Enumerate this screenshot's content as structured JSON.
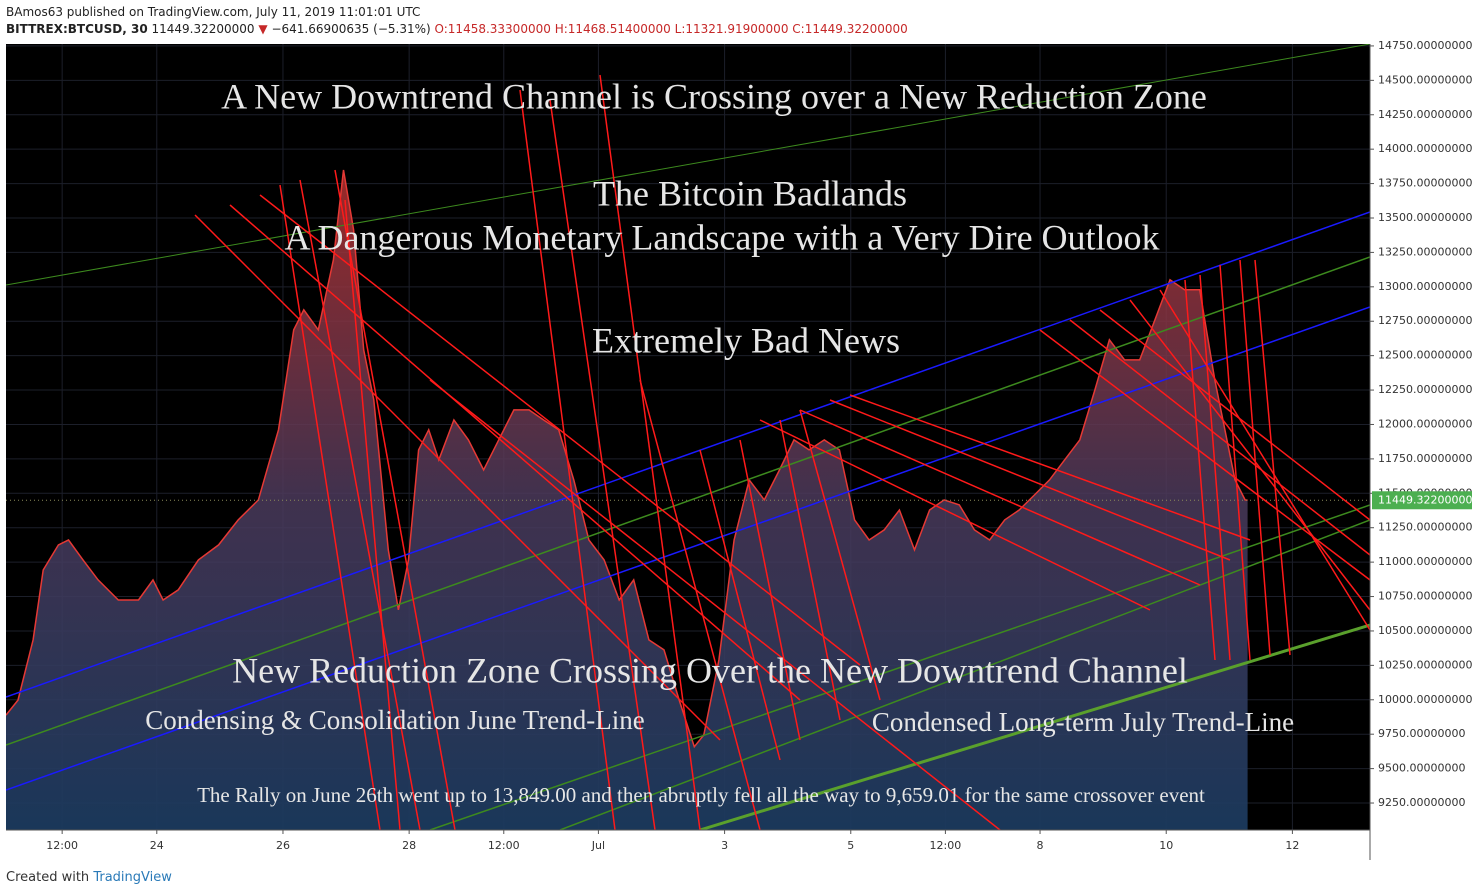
{
  "header": {
    "publisher": "BAmos63 published on TradingView.com, July 11, 2019 11:01:01 UTC",
    "symbol": "BITTREX:BTCUSD, 30",
    "last": "11449.32200000",
    "arrow": "▼",
    "change": "−641.66900635 (−5.31%)",
    "open": "O:11458.33300000",
    "high": "H:11468.51400000",
    "low": "L:11321.91900000",
    "close": "C:11449.32200000"
  },
  "footer": {
    "created": "Created with",
    "brand": "TradingView"
  },
  "chart_data": {
    "type": "area",
    "color": "#e53935",
    "annotations": [
      "A New Downtrend Channel is Crossing over a New Reduction Zone",
      "The Bitcoin Badlands",
      "A Dangerous Monetary Landscape with a Very Dire Outlook",
      "Extremely Bad News",
      "New Reduction Zone Crossing Over the New Downtrend Channel",
      "Condensing & Consolidation June Trend-Line",
      "Condensed Long-term July Trend-Line",
      "The Rally on June 26th went up to 13,849.00 and then abruptly fell all the way to 9,659.01 for the same crossover event"
    ],
    "x": [
      -0.39,
      -0.2,
      0.04,
      0.2,
      0.44,
      0.6,
      0.83,
      1.07,
      1.39,
      1.71,
      1.94,
      2.1,
      2.34,
      2.66,
      2.98,
      3.29,
      3.61,
      3.93,
      4.17,
      4.33,
      4.56,
      4.8,
      4.96,
      5.12,
      5.28,
      5.44,
      5.67,
      5.83,
      5.99,
      6.15,
      6.31,
      6.47,
      6.71,
      6.94,
      7.18,
      7.42,
      7.66,
      7.9,
      8.13,
      8.37,
      8.61,
      8.85,
      9.09,
      9.33,
      9.56,
      9.8,
      10.04,
      10.28,
      10.52,
      10.67,
      10.91,
      11.15,
      11.39,
      11.63,
      11.87,
      12.1,
      12.34,
      12.58,
      12.82,
      13.06,
      13.29,
      13.53,
      13.77,
      14.01,
      14.25,
      14.48,
      14.72,
      14.96,
      15.2,
      15.44,
      15.67,
      15.91,
      16.15,
      16.39,
      16.63,
      16.87,
      17.1,
      17.34,
      17.58,
      17.82,
      18.06,
      18.29,
      18.53,
      18.77,
      18.93,
      19.09,
      19.25,
      19.29
    ],
    "values": [
      9889,
      9998,
      10435,
      10943,
      11125,
      11161,
      11016,
      10871,
      10725,
      10725,
      10871,
      10725,
      10798,
      11016,
      11125,
      11307,
      11452,
      11961,
      12687,
      12833,
      12687,
      13196,
      13849,
      13414,
      12542,
      12179,
      11089,
      10653,
      11016,
      11815,
      11961,
      11743,
      12033,
      11888,
      11670,
      11888,
      12106,
      12106,
      12033,
      11961,
      11597,
      11161,
      11016,
      10725,
      10871,
      10435,
      10362,
      9998,
      9659,
      9744,
      10289,
      11161,
      11597,
      11452,
      11670,
      11888,
      11815,
      11888,
      11815,
      11307,
      11161,
      11234,
      11379,
      11089,
      11379,
      11452,
      11416,
      11234,
      11161,
      11307,
      11379,
      11488,
      11597,
      11743,
      11888,
      12251,
      12615,
      12469,
      12469,
      12760,
      13051,
      12978,
      12978,
      12324,
      11961,
      11597,
      11452,
      11449.322
    ],
    "last_price": {
      "value": 11449.322,
      "label": "11449.32200000"
    },
    "xlim": [
      -0.39,
      21.23
    ],
    "ylim": [
      9054,
      14764
    ],
    "xticks": [
      {
        "value": 0.5,
        "label": "12:00"
      },
      {
        "value": 2,
        "label": "24"
      },
      {
        "value": 4,
        "label": "26"
      },
      {
        "value": 6,
        "label": "28"
      },
      {
        "value": 7.5,
        "label": "12:00"
      },
      {
        "value": 9,
        "label": "Jul"
      },
      {
        "value": 11,
        "label": "3"
      },
      {
        "value": 13,
        "label": "5"
      },
      {
        "value": 14.5,
        "label": "12:00"
      },
      {
        "value": 16,
        "label": "8"
      },
      {
        "value": 18,
        "label": "10"
      },
      {
        "value": 20,
        "label": "12"
      }
    ],
    "yticks": [
      {
        "value": 9250,
        "label": "9250.00000000"
      },
      {
        "value": 9500,
        "label": "9500.00000000"
      },
      {
        "value": 9750,
        "label": "9750.00000000"
      },
      {
        "value": 10000,
        "label": "10000.00000000"
      },
      {
        "value": 10250,
        "label": "10250.00000000"
      },
      {
        "value": 10500,
        "label": "10500.00000000"
      },
      {
        "value": 10750,
        "label": "10750.00000000"
      },
      {
        "value": 11000,
        "label": "11000.00000000"
      },
      {
        "value": 11250,
        "label": "11250.00000000"
      },
      {
        "value": 11500,
        "label": "11500.00000000"
      },
      {
        "value": 11750,
        "label": "11750.00000000"
      },
      {
        "value": 12000,
        "label": "12000.00000000"
      },
      {
        "value": 12250,
        "label": "12250.00000000"
      },
      {
        "value": 12500,
        "label": "12500.00000000"
      },
      {
        "value": 12750,
        "label": "12750.00000000"
      },
      {
        "value": 13000,
        "label": "13000.00000000"
      },
      {
        "value": 13250,
        "label": "13250.00000000"
      },
      {
        "value": 13500,
        "label": "13500.00000000"
      },
      {
        "value": 13750,
        "label": "13750.00000000"
      },
      {
        "value": 14000,
        "label": "14000.00000000"
      },
      {
        "value": 14250,
        "label": "14250.00000000"
      },
      {
        "value": 14500,
        "label": "14500.00000000"
      },
      {
        "value": 14750,
        "label": "14750.00000000"
      }
    ],
    "grid": true
  }
}
